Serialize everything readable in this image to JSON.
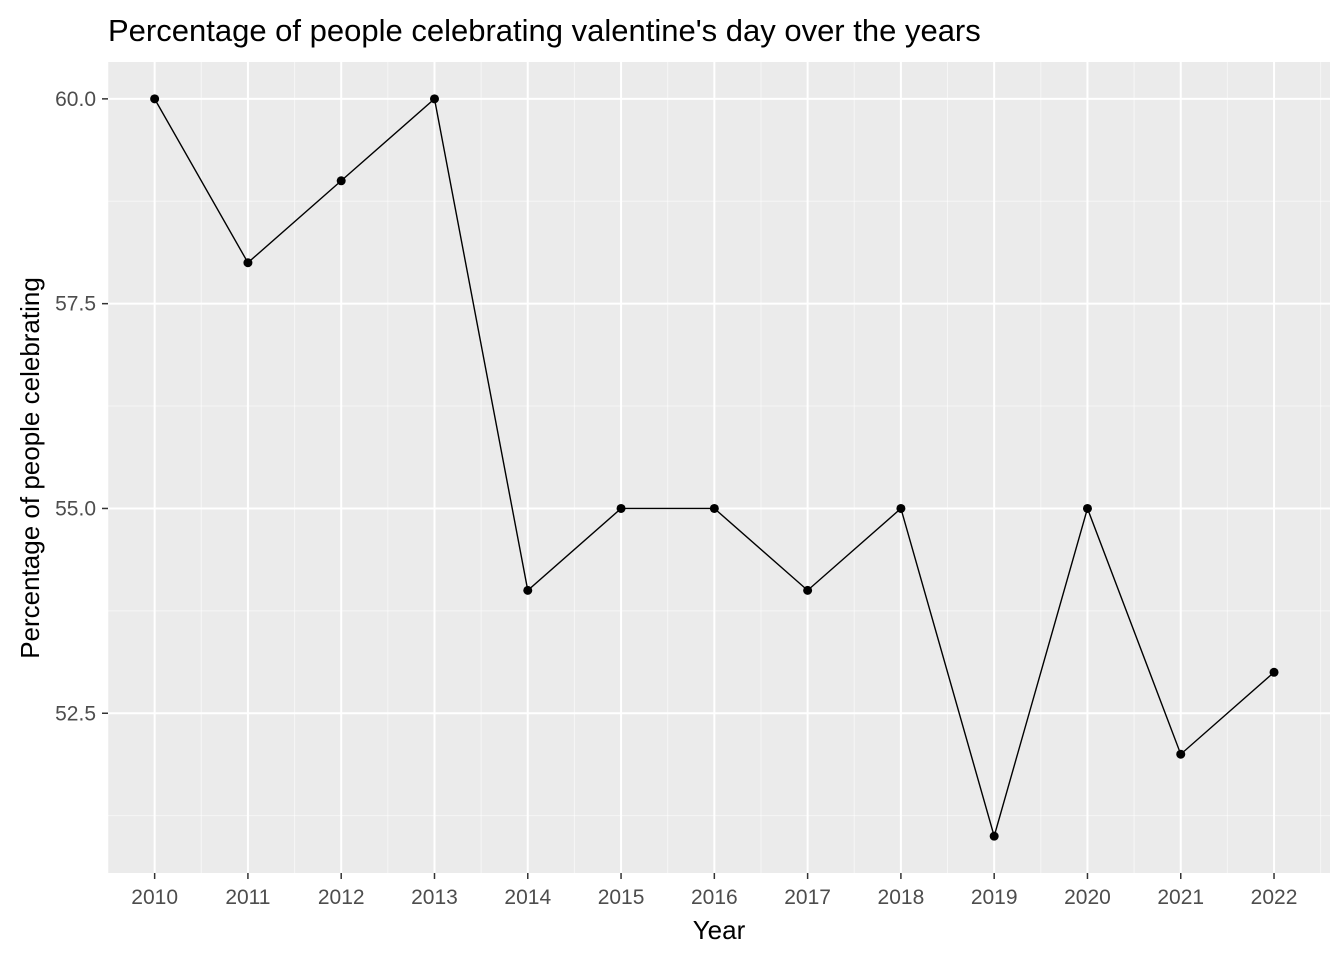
{
  "chart_data": {
    "type": "line",
    "title": "Percentage of people celebrating valentine's day over the years",
    "xlabel": "Year",
    "ylabel": "Percentage of people celebrating",
    "x": [
      2010,
      2011,
      2012,
      2013,
      2014,
      2015,
      2016,
      2017,
      2018,
      2019,
      2020,
      2021,
      2022
    ],
    "values": [
      60,
      58,
      59,
      60,
      54,
      55,
      55,
      54,
      55,
      51,
      55,
      52,
      53
    ],
    "x_ticks": [
      "2010",
      "2011",
      "2012",
      "2013",
      "2014",
      "2015",
      "2016",
      "2017",
      "2018",
      "2019",
      "2020",
      "2021",
      "2022"
    ],
    "y_ticks": [
      "52.5",
      "55.0",
      "57.5",
      "60.0"
    ],
    "y_tick_values": [
      52.5,
      55.0,
      57.5,
      60.0
    ],
    "xlim": [
      2009.5,
      2022.6
    ],
    "ylim": [
      50.55,
      60.45
    ],
    "grid": true,
    "panel_background": "#ebebeb",
    "grid_color": "#ffffff",
    "line_color": "#000000",
    "point_color": "#000000"
  }
}
